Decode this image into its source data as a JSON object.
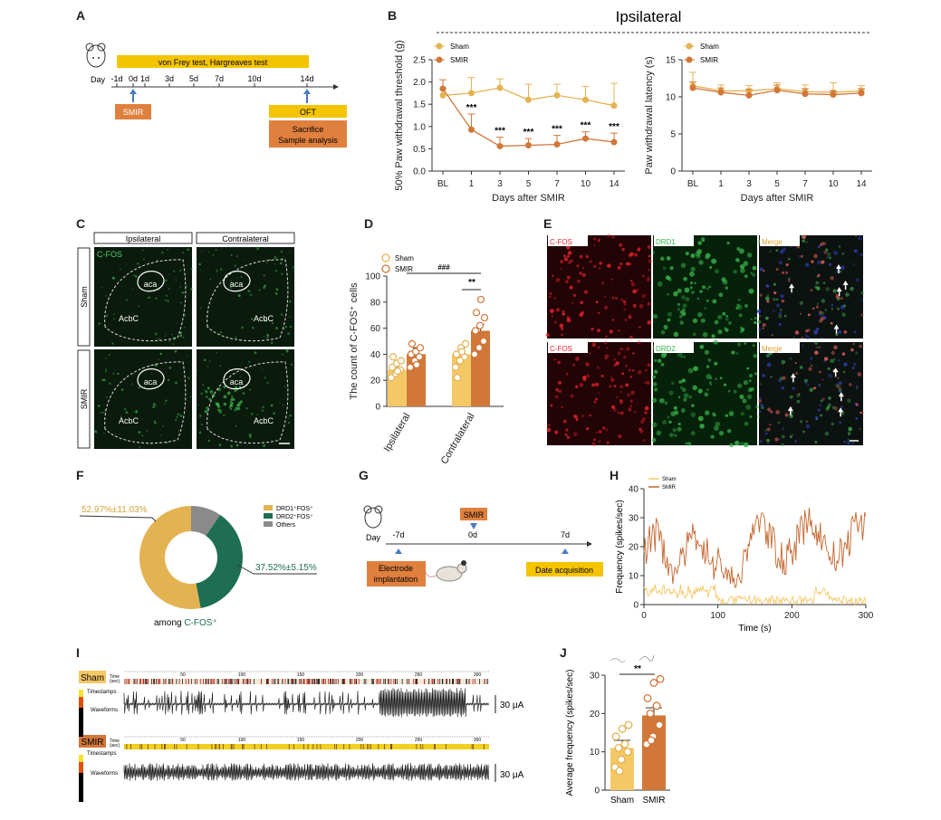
{
  "colors": {
    "sham": "#e3b352",
    "sham_light": "#f5c866",
    "smir": "#d1773a",
    "smir_dark": "#c4662e",
    "green": "#1d6e52",
    "gray": "#8a8a8a",
    "yellow": "#f2c200",
    "orange_box": "#e0803e",
    "fluor_red": "#e8242a",
    "fluor_green": "#3ab54a"
  },
  "labels": {
    "A": "A",
    "B": "B",
    "C": "C",
    "D": "D",
    "E": "E",
    "F": "F",
    "G": "G",
    "H": "H",
    "I": "I",
    "J": "J"
  },
  "panelA": {
    "day_label": "Day",
    "ticks": [
      "-1d",
      "0d",
      "1d",
      "3d",
      "5d",
      "7d",
      "10d",
      "14d"
    ],
    "test_bar": "von Frey test, Hargreaves test",
    "smir": "SMIR",
    "oft": "OFT",
    "sac1": "Sacrifice",
    "sac2": "Sample analysis"
  },
  "panelB": {
    "title": "Ipsilateral",
    "legend": [
      "Sham",
      "SMIR"
    ],
    "sig": "***"
  },
  "panelC": {
    "col_ipsi": "Ipsilateral",
    "col_contra": "Contralateral",
    "row_sham": "Sham",
    "row_smir": "SMIR",
    "cfos": "C-FOS",
    "aca": "aca",
    "acbc": "AcbC"
  },
  "panelE": {
    "cfos": "C-FOS",
    "drd1": "DRD1",
    "drd2": "DRD2",
    "merge": "Merge"
  },
  "panelF": {
    "pct_drd1": "52.97%±11.03%",
    "pct_drd2": "37.52%±5.15%",
    "legend": [
      "DRD1⁺FOS⁺",
      "DRD2⁺FOS⁺",
      "Others"
    ],
    "among": "among ",
    "cfos": "C-FOS⁺"
  },
  "panelG": {
    "day": "Day",
    "t1": "-7d",
    "t2": "0d",
    "t3": "7d",
    "smir": "SMIR",
    "electrode1": "Electrode",
    "electrode2": "implantation",
    "acq": "Date acquisition"
  },
  "panelI": {
    "sham": "Sham",
    "smir": "SMIR",
    "time": "Time",
    "sec": "(sec)",
    "timestamps": "Timestamps",
    "waveforms": "Waveforms",
    "scale": "30 μA",
    "ticks": [
      "50",
      "100",
      "150",
      "200",
      "250",
      "300"
    ]
  },
  "chart_data": [
    {
      "id": "B_left",
      "type": "line",
      "title": "Ipsilateral",
      "xlabel": "Days after SMIR",
      "ylabel": "50% Paw withdrawal threshold (g)",
      "categories": [
        "BL",
        "1",
        "3",
        "5",
        "7",
        "10",
        "14"
      ],
      "ylim": [
        0,
        2.5
      ],
      "yticks": [
        "0.0",
        "0.5",
        "1.0",
        "1.5",
        "2.0",
        "2.5"
      ],
      "series": [
        {
          "name": "Sham",
          "values": [
            1.7,
            1.75,
            1.87,
            1.6,
            1.7,
            1.6,
            1.47
          ],
          "err": [
            0.15,
            0.35,
            0.2,
            0.35,
            0.25,
            0.3,
            0.5
          ]
        },
        {
          "name": "SMIR",
          "values": [
            1.85,
            0.93,
            0.56,
            0.58,
            0.6,
            0.73,
            0.65
          ],
          "err": [
            0.2,
            0.35,
            0.2,
            0.15,
            0.2,
            0.15,
            0.2
          ]
        }
      ],
      "sig": [
        "",
        "***",
        "***",
        "***",
        "***",
        "***",
        "***"
      ]
    },
    {
      "id": "B_right",
      "type": "line",
      "xlabel": "Days after SMIR",
      "ylabel": "Paw withdrawal latency (s)",
      "categories": [
        "BL",
        "1",
        "3",
        "5",
        "7",
        "10",
        "14"
      ],
      "ylim": [
        0,
        15
      ],
      "yticks": [
        "0",
        "5",
        "10",
        "15"
      ],
      "series": [
        {
          "name": "Sham",
          "values": [
            11.5,
            10.8,
            10.8,
            11.1,
            10.7,
            10.6,
            10.8
          ],
          "err": [
            1.8,
            0.8,
            0.7,
            0.8,
            0.9,
            1.3,
            0.7
          ]
        },
        {
          "name": "SMIR",
          "values": [
            11.2,
            10.6,
            10.2,
            10.9,
            10.4,
            10.3,
            10.5
          ],
          "err": [
            0.8,
            0.6,
            0.8,
            0.7,
            0.7,
            0.5,
            0.6
          ]
        }
      ]
    },
    {
      "id": "D",
      "type": "bar",
      "ylabel": "The count of C-FOS⁺ cells",
      "categories": [
        "Ipsilateral",
        "Contralateral"
      ],
      "ylim": [
        0,
        100
      ],
      "yticks": [
        "0",
        "20",
        "40",
        "60",
        "80",
        "100"
      ],
      "series": [
        {
          "name": "Sham",
          "values": [
            28,
            40
          ]
        },
        {
          "name": "SMIR",
          "values": [
            40,
            58
          ]
        }
      ],
      "points": {
        "Sham": [
          [
            22,
            25,
            28,
            30,
            33,
            35,
            38,
            27
          ],
          [
            30,
            35,
            38,
            40,
            45,
            48,
            22,
            42
          ]
        ],
        "SMIR": [
          [
            30,
            35,
            38,
            40,
            42,
            45,
            48,
            32
          ],
          [
            40,
            45,
            50,
            58,
            62,
            68,
            72,
            82
          ]
        ]
      },
      "annotations": [
        "###",
        "**"
      ]
    },
    {
      "id": "F",
      "type": "pie",
      "labels": [
        "DRD1⁺FOS⁺",
        "DRD2⁺FOS⁺",
        "Others"
      ],
      "values": [
        52.97,
        37.52,
        9.51
      ]
    },
    {
      "id": "H",
      "type": "line",
      "xlabel": "Time (s)",
      "ylabel": "Frequency (spikes/sec)",
      "xlim": [
        0,
        300
      ],
      "ylim": [
        0,
        40
      ],
      "xticks": [
        "0",
        "100",
        "200",
        "300"
      ],
      "yticks": [
        "0",
        "10",
        "20",
        "30",
        "40"
      ],
      "legend": [
        "Sham",
        "SMIR"
      ]
    },
    {
      "id": "J",
      "type": "bar",
      "ylabel": "Average frequency (spikes/sec)",
      "categories": [
        "Sham",
        "SMIR"
      ],
      "ylim": [
        0,
        30
      ],
      "yticks": [
        "0",
        "10",
        "20",
        "30"
      ],
      "values": [
        11,
        19.5
      ],
      "points": [
        [
          6,
          8,
          10,
          11,
          12,
          14,
          16,
          17,
          5
        ],
        [
          12,
          14,
          17,
          20,
          22,
          24,
          28,
          29,
          13
        ]
      ],
      "annotation": "**"
    }
  ]
}
